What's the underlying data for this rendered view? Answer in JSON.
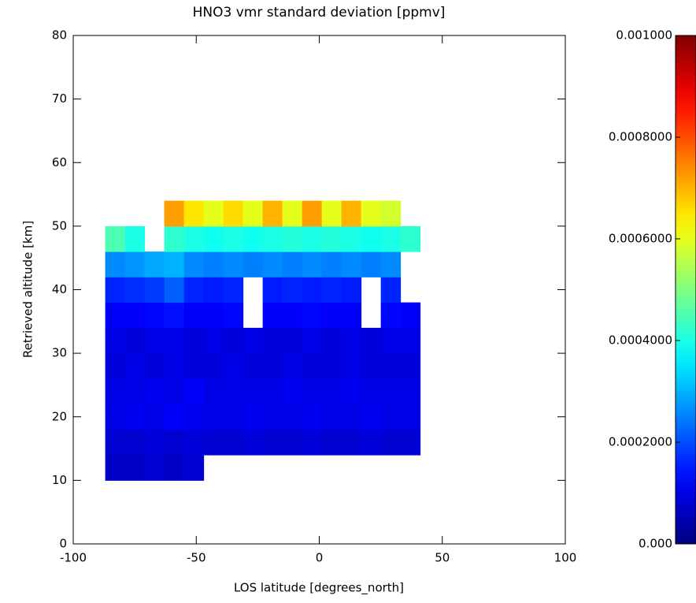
{
  "chart_data": {
    "type": "heatmap",
    "title": "HNO3 vmr standard deviation [ppmv]",
    "x_label": "LOS latitude [degrees_north]",
    "y_label": "Retrieved altitude [km]",
    "xlim": [
      -100,
      100
    ],
    "xticks": [
      -100,
      -50,
      0,
      50,
      100
    ],
    "ylim": [
      0,
      80
    ],
    "yticks": [
      0,
      10,
      20,
      30,
      40,
      50,
      60,
      70,
      80
    ],
    "clim": [
      0,
      0.001
    ],
    "cticks": [
      {
        "value": 0,
        "label": "0.000"
      },
      {
        "value": 0.0002,
        "label": "0.0002000"
      },
      {
        "value": 0.0004,
        "label": "0.0004000"
      },
      {
        "value": 0.0006,
        "label": "0.0006000"
      },
      {
        "value": 0.0008,
        "label": "0.0008000"
      },
      {
        "value": 0.001,
        "label": "0.001000"
      }
    ],
    "colormap": "jet",
    "xbins": [
      -87,
      -79,
      -71,
      -63,
      -55,
      -47,
      -39,
      -31,
      -23,
      -15,
      -7,
      1,
      9,
      17,
      25,
      33,
      41
    ],
    "ybins": [
      10,
      14,
      18,
      22,
      26,
      30,
      34,
      38,
      42,
      46,
      50,
      54
    ],
    "values": [
      [
        7e-05,
        7e-05,
        8e-05,
        7e-05,
        8e-05,
        null,
        null,
        null,
        null,
        null,
        null,
        null,
        null,
        null,
        null,
        null
      ],
      [
        8e-05,
        8e-05,
        9e-05,
        8e-05,
        9e-05,
        8e-05,
        8e-05,
        9e-05,
        8e-05,
        8e-05,
        9e-05,
        8e-05,
        8e-05,
        9e-05,
        8e-05,
        8e-05
      ],
      [
        0.0001,
        0.00011,
        0.0001,
        0.00012,
        0.00011,
        0.0001,
        0.0001,
        0.00011,
        0.0001,
        0.0001,
        0.00011,
        0.0001,
        0.0001,
        0.00011,
        0.0001,
        0.0001
      ],
      [
        0.0001,
        0.0001,
        0.00011,
        0.0001,
        0.00012,
        0.0001,
        0.0001,
        0.0001,
        0.0001,
        0.00011,
        0.0001,
        0.0001,
        0.00011,
        0.0001,
        0.0001,
        0.0001
      ],
      [
        9e-05,
        0.0001,
        9e-05,
        0.0001,
        9e-05,
        9e-05,
        0.0001,
        9e-05,
        9e-05,
        0.0001,
        9e-05,
        9e-05,
        0.0001,
        9e-05,
        9e-05,
        9e-05
      ],
      [
        0.0001,
        9e-05,
        0.0001,
        0.0001,
        9e-05,
        0.0001,
        9e-05,
        0.0001,
        9e-05,
        9e-05,
        0.0001,
        9e-05,
        0.0001,
        9e-05,
        0.0001,
        0.0001
      ],
      [
        0.00012,
        0.00012,
        0.00013,
        0.00014,
        0.00012,
        0.00012,
        0.00013,
        null,
        0.00012,
        0.00012,
        0.00013,
        0.00012,
        0.00012,
        null,
        0.00013,
        0.00012
      ],
      [
        0.00016,
        0.00017,
        0.00018,
        0.00022,
        0.00016,
        0.00015,
        0.00016,
        null,
        0.00015,
        0.00016,
        0.00015,
        0.00016,
        0.00015,
        null,
        0.00016,
        null
      ],
      [
        0.00026,
        0.00027,
        0.00029,
        0.0003,
        0.00026,
        0.00025,
        0.00026,
        0.00025,
        0.00026,
        0.00025,
        0.00026,
        0.00025,
        0.00026,
        0.00025,
        0.00026,
        null
      ],
      [
        0.00045,
        0.0004,
        null,
        0.00042,
        0.0004,
        0.00039,
        0.0004,
        0.00039,
        0.0004,
        0.00041,
        0.0004,
        0.00041,
        0.0004,
        0.00039,
        0.0004,
        0.00042
      ],
      [
        null,
        null,
        null,
        0.00072,
        0.00065,
        0.0006,
        0.00066,
        0.0006,
        0.0007,
        0.0006,
        0.00072,
        0.0006,
        0.0007,
        0.0006,
        0.00058,
        null
      ]
    ]
  }
}
